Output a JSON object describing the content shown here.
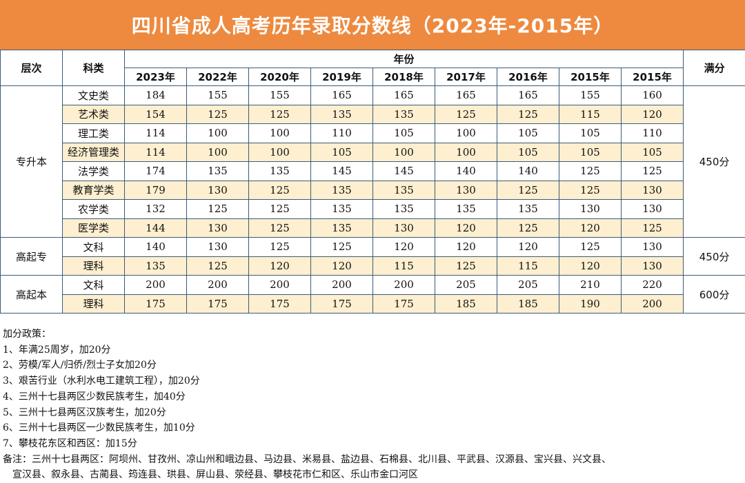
{
  "title": "四川省成人高考历年录取分数线（2023年-2015年）",
  "headers": {
    "level": "层次",
    "subject": "科类",
    "year_group": "年份",
    "full_score": "满分",
    "years": [
      "2023年",
      "2022年",
      "2020年",
      "2019年",
      "2018年",
      "2017年",
      "2016年",
      "2015年",
      "2015年"
    ]
  },
  "groups": [
    {
      "level": "专升本",
      "full": "450分",
      "rows": [
        {
          "subject": "文史类",
          "scores": [
            "184",
            "155",
            "155",
            "165",
            "165",
            "165",
            "165",
            "155",
            "160"
          ]
        },
        {
          "subject": "艺术类",
          "scores": [
            "154",
            "125",
            "125",
            "135",
            "135",
            "125",
            "125",
            "115",
            "120"
          ]
        },
        {
          "subject": "理工类",
          "scores": [
            "114",
            "100",
            "100",
            "110",
            "105",
            "100",
            "105",
            "105",
            "110"
          ]
        },
        {
          "subject": "经济管理类",
          "scores": [
            "114",
            "100",
            "100",
            "105",
            "100",
            "100",
            "105",
            "105",
            "105"
          ]
        },
        {
          "subject": "法学类",
          "scores": [
            "174",
            "135",
            "135",
            "145",
            "145",
            "140",
            "140",
            "125",
            "125"
          ]
        },
        {
          "subject": "教育学类",
          "scores": [
            "179",
            "130",
            "125",
            "135",
            "135",
            "130",
            "125",
            "125",
            "130"
          ]
        },
        {
          "subject": "农学类",
          "scores": [
            "132",
            "125",
            "125",
            "135",
            "135",
            "135",
            "135",
            "130",
            "130"
          ]
        },
        {
          "subject": "医学类",
          "scores": [
            "144",
            "130",
            "125",
            "135",
            "130",
            "120",
            "125",
            "120",
            "125"
          ]
        }
      ]
    },
    {
      "level": "高起专",
      "full": "450分",
      "rows": [
        {
          "subject": "文科",
          "scores": [
            "140",
            "130",
            "125",
            "125",
            "120",
            "120",
            "120",
            "125",
            "130"
          ]
        },
        {
          "subject": "理科",
          "scores": [
            "135",
            "125",
            "120",
            "120",
            "115",
            "125",
            "115",
            "120",
            "130"
          ]
        }
      ]
    },
    {
      "level": "高起本",
      "full": "600分",
      "rows": [
        {
          "subject": "文科",
          "scores": [
            "200",
            "200",
            "200",
            "200",
            "200",
            "205",
            "205",
            "210",
            "220"
          ]
        },
        {
          "subject": "理科",
          "scores": [
            "175",
            "175",
            "175",
            "175",
            "175",
            "185",
            "185",
            "190",
            "200"
          ]
        }
      ]
    }
  ],
  "notes": [
    "加分政策：",
    "1、年满25周岁，加20分",
    "2、劳模/军人/归侨/烈士子女加20分",
    "3、艰苦行业（水利水电工建筑工程），加20分",
    "4、三州十七县两区少数民族考生，加40分",
    "5、三州十七县两区汉族考生，加20分",
    "6、三州十七县两区一少数民族考生，加10分",
    "7、攀枝花东区和西区：加15分",
    "备注：三州十七县两区：阿坝州、甘孜州、凉山州和峨边县、马边县、米易县、盐边县、石棉县、北川县、平武县、汉源县、宝兴县、兴文县、",
    "　宣汉县、叙永县、古蔺县、筠连县、珙县、屏山县、荥经县、攀枝花市仁和区、乐山市金口河区"
  ]
}
